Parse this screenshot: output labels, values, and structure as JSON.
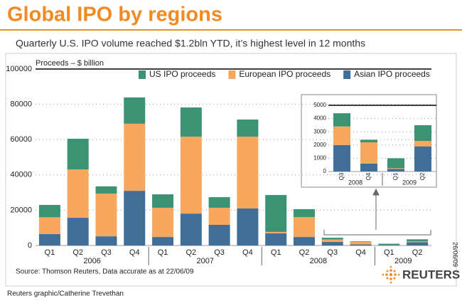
{
  "chart_data": [
    {
      "type": "bar",
      "stacked": true,
      "title": "Global IPO by regions",
      "subtitle": "Quarterly U.S. IPO volume reached $1.2bln YTD, it’s highest level in 12 months",
      "y_label": "Proceeds – $ billion",
      "source": "Source: Thomson Reuters, Data accurate as at 22/06/09",
      "groups": [
        {
          "name": "2006",
          "categories": [
            "Q1",
            "Q2",
            "Q3",
            "Q4"
          ]
        },
        {
          "name": "2007",
          "categories": [
            "Q1",
            "Q2",
            "Q3",
            "Q4"
          ]
        },
        {
          "name": "2008",
          "categories": [
            "Q1",
            "Q2",
            "Q3",
            "Q4"
          ]
        },
        {
          "name": "2009",
          "categories": [
            "Q1",
            "Q2"
          ]
        }
      ],
      "series": [
        {
          "name": "Asian IPO proceeds",
          "color": "#3f6f98",
          "values": [
            6500,
            15700,
            5200,
            31000,
            4800,
            18100,
            11700,
            21000,
            6900,
            4800,
            2000,
            600,
            200,
            1900
          ]
        },
        {
          "name": "European IPO proceeds",
          "color": "#f7a85e",
          "values": [
            9500,
            27400,
            24200,
            38000,
            16600,
            43600,
            9700,
            40700,
            800,
            11300,
            1400,
            1600,
            50,
            400
          ]
        },
        {
          "name": "US IPO proceeds",
          "color": "#3a9474",
          "values": [
            7000,
            17400,
            4100,
            14900,
            7600,
            16500,
            6000,
            9700,
            20900,
            4500,
            1000,
            200,
            750,
            1200
          ]
        }
      ],
      "ylim": [
        0,
        100000
      ],
      "yticks": [
        0,
        20000,
        40000,
        60000,
        80000,
        100000
      ],
      "grid": true,
      "legend": "top-right"
    },
    {
      "type": "bar",
      "stacked": true,
      "groups": [
        {
          "name": "2008",
          "categories": [
            "Q3",
            "Q4"
          ]
        },
        {
          "name": "2009",
          "categories": [
            "Q1",
            "Q2"
          ]
        }
      ],
      "series": [
        {
          "color": "#3f6f98",
          "values": [
            2000,
            600,
            200,
            1900
          ]
        },
        {
          "color": "#f7a85e",
          "values": [
            1400,
            1600,
            50,
            400
          ]
        },
        {
          "color": "#3a9474",
          "values": [
            1000,
            200,
            750,
            1200
          ]
        }
      ],
      "ylim": [
        0,
        5000
      ],
      "yticks": [
        0,
        1000,
        2000,
        3000,
        4000,
        5000
      ],
      "grid": true
    }
  ],
  "credit": "Reuters graphic/Catherine Trevethan",
  "date": "26/06/09",
  "logo": "REUTERS"
}
